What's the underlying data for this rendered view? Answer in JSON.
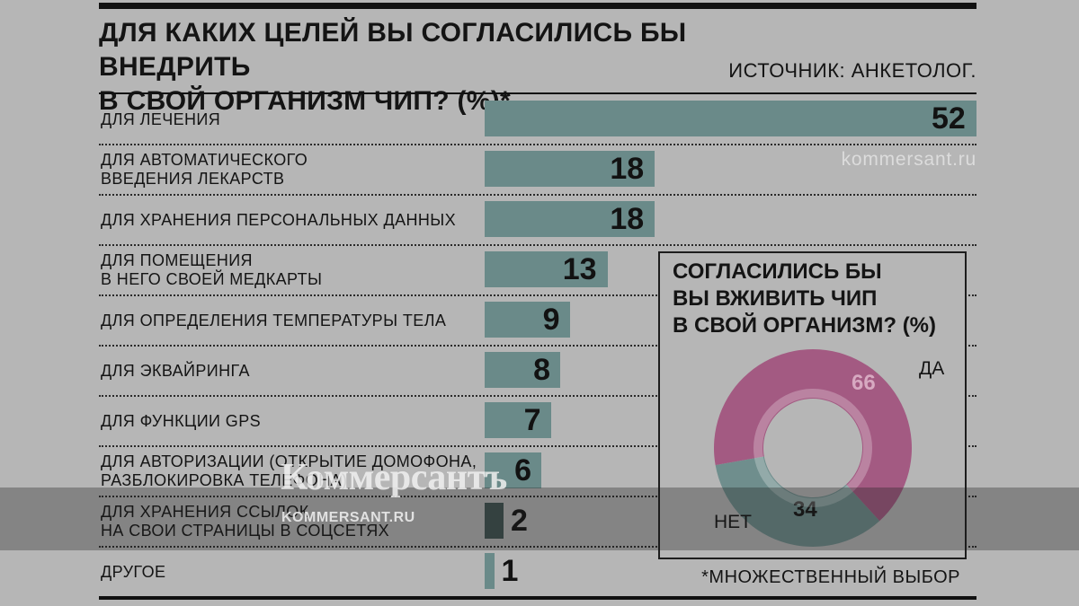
{
  "title": "ДЛЯ КАКИХ ЦЕЛЕЙ ВЫ СОГЛАСИЛИСЬ БЫ ВНЕДРИТЬ\nВ СВОЙ ОРГАНИЗМ ЧИП? (%)*",
  "source": "ИСТОЧНИК: АНКЕТОЛОГ.",
  "footnote": "*МНОЖЕСТВЕННЫЙ ВЫБОР",
  "watermark_site": "kommersant.ru",
  "watermark_logo": "Коммерсантъ",
  "watermark_url": "KOMMERSANT.RU",
  "colors": {
    "bar": "#6a8a89",
    "bar_dark": "#3f5251",
    "donut_yes": "#a35a82",
    "donut_no": "#6f8e8d",
    "background": "#b6b6b6"
  },
  "chart_data": [
    {
      "type": "bar",
      "orientation": "horizontal",
      "title": "ДЛЯ КАКИХ ЦЕЛЕЙ ВЫ СОГЛАСИЛИСЬ БЫ ВНЕДРИТЬ В СВОЙ ОРГАНИЗМ ЧИП? (%)*",
      "categories": [
        "ДЛЯ ЛЕЧЕНИЯ",
        "ДЛЯ АВТОМАТИЧЕСКОГО\nВВЕДЕНИЯ ЛЕКАРСТВ",
        "ДЛЯ ХРАНЕНИЯ ПЕРСОНАЛЬНЫХ ДАННЫХ",
        "ДЛЯ ПОМЕЩЕНИЯ\nВ НЕГО СВОЕЙ МЕДКАРТЫ",
        "ДЛЯ ОПРЕДЕЛЕНИЯ ТЕМПЕРАТУРЫ ТЕЛА",
        "ДЛЯ ЭКВАЙРИНГА",
        "ДЛЯ ФУНКЦИИ GPS",
        "ДЛЯ АВТОРИЗАЦИИ (ОТКРЫТИЕ ДОМОФОНА,\nРАЗБЛОКИРОВКА ТЕЛЕФОНА)",
        "ДЛЯ ХРАНЕНИЯ ССЫЛОК\nНА СВОИ СТРАНИЦЫ В СОЦСЕТЯХ",
        "ДРУГОЕ"
      ],
      "values": [
        52,
        18,
        18,
        13,
        9,
        8,
        7,
        6,
        2,
        1
      ],
      "xlim": [
        0,
        52
      ]
    },
    {
      "type": "pie",
      "style": "donut",
      "title": "СОГЛАСИЛИСЬ БЫ\nВЫ ВЖИВИТЬ ЧИП\nВ СВОЙ ОРГАНИЗМ? (%)",
      "slices": [
        {
          "label": "ДА",
          "value": 66
        },
        {
          "label": "НЕТ",
          "value": 34
        }
      ]
    }
  ]
}
